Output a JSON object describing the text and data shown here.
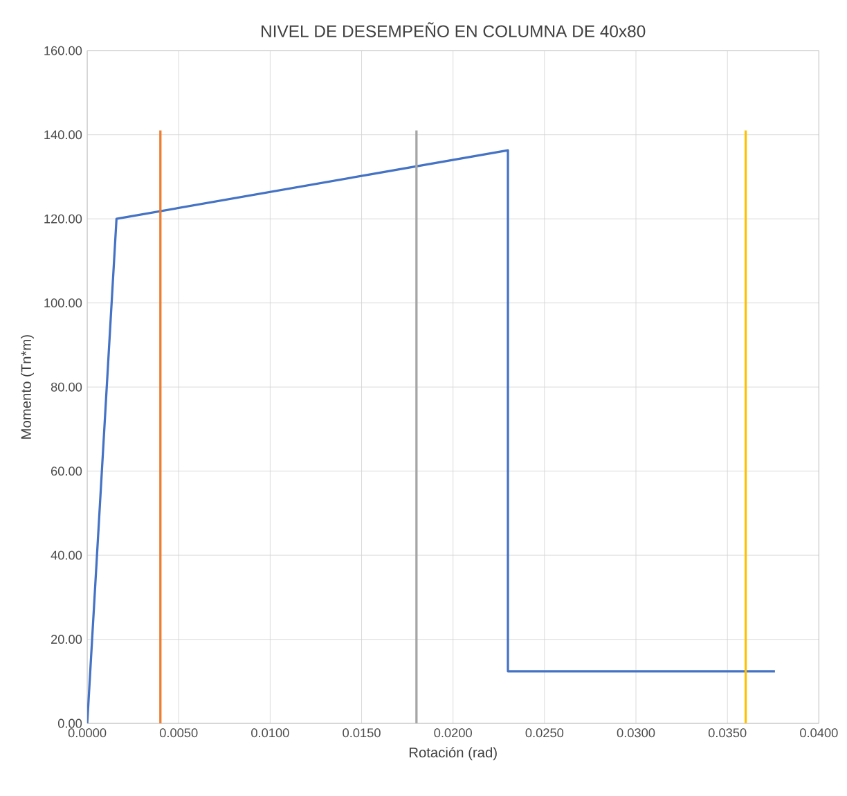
{
  "chart_data": {
    "type": "line",
    "title": "NIVEL DE DESEMPEÑO EN COLUMNA DE 40x80",
    "xlabel": "Rotación (rad)",
    "ylabel": "Momento (Tn*m)",
    "series": [
      {
        "color": "#4472c4",
        "x": [
          0,
          0.0016,
          0.023,
          0.023,
          0.0376
        ],
        "values": [
          0,
          120,
          136.3,
          12.4,
          12.4
        ]
      },
      {
        "color": "#ed7d31",
        "x": [
          0.004,
          0.004
        ],
        "values": [
          0,
          141
        ]
      },
      {
        "color": "#a5a5a5",
        "x": [
          0.018,
          0.018
        ],
        "values": [
          0,
          141
        ]
      },
      {
        "color": "#ffc000",
        "x": [
          0.036,
          0.036
        ],
        "values": [
          0,
          141
        ]
      }
    ],
    "xlim": [
      0,
      0.04
    ],
    "ylim": [
      0,
      160
    ],
    "xticks": [
      {
        "value": 0,
        "label": "0.0000"
      },
      {
        "value": 0.005,
        "label": "0.0050"
      },
      {
        "value": 0.01,
        "label": "0.0100"
      },
      {
        "value": 0.015,
        "label": "0.0150"
      },
      {
        "value": 0.02,
        "label": "0.0200"
      },
      {
        "value": 0.025,
        "label": "0.0250"
      },
      {
        "value": 0.03,
        "label": "0.0300"
      },
      {
        "value": 0.035,
        "label": "0.0350"
      },
      {
        "value": 0.04,
        "label": "0.0400"
      }
    ],
    "yticks": [
      {
        "value": 0,
        "label": "0.00"
      },
      {
        "value": 20,
        "label": "20.00"
      },
      {
        "value": 40,
        "label": "40.00"
      },
      {
        "value": 60,
        "label": "60.00"
      },
      {
        "value": 80,
        "label": "80.00"
      },
      {
        "value": 100,
        "label": "100.00"
      },
      {
        "value": 120,
        "label": "120.00"
      },
      {
        "value": 140,
        "label": "140.00"
      },
      {
        "value": 160,
        "label": "160.00"
      }
    ],
    "grid": true,
    "marker": "none",
    "line_style": "solid"
  }
}
